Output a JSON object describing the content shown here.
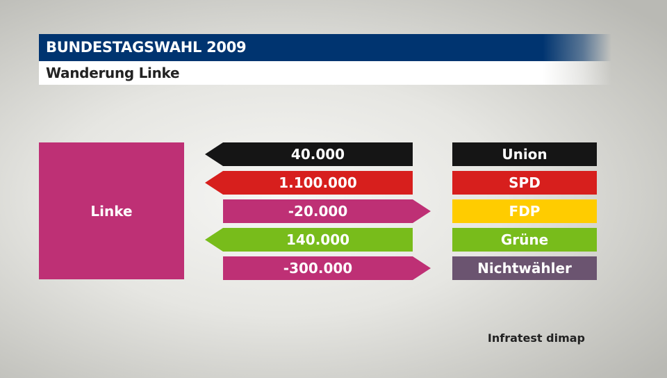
{
  "header": {
    "title": "BUNDESTAGSWAHL 2009",
    "subtitle": "Wanderung Linke"
  },
  "source": "Infratest dimap",
  "colors": {
    "header_bg": "#003470",
    "linke": "#be3075",
    "union": "#151515",
    "spd": "#d71f1d",
    "fdp": "#ffcc00",
    "gruene": "#78bc1b",
    "nichtwaehler": "#6b5470"
  },
  "chart_data": {
    "type": "table",
    "title": "Wanderung Linke",
    "party": {
      "label": "Linke",
      "color": "#be3075"
    },
    "flows": [
      {
        "party": "Union",
        "value_label": "40.000",
        "value": 40000,
        "direction": "in",
        "color": "#151515"
      },
      {
        "party": "SPD",
        "value_label": "1.100.000",
        "value": 1100000,
        "direction": "in",
        "color": "#d71f1d"
      },
      {
        "party": "FDP",
        "value_label": "-20.000",
        "value": -20000,
        "direction": "out",
        "color": "#ffcc00"
      },
      {
        "party": "Grüne",
        "value_label": "140.000",
        "value": 140000,
        "direction": "in",
        "color": "#78bc1b"
      },
      {
        "party": "Nichtwähler",
        "value_label": "-300.000",
        "value": -300000,
        "direction": "out",
        "color": "#6b5470"
      }
    ]
  }
}
